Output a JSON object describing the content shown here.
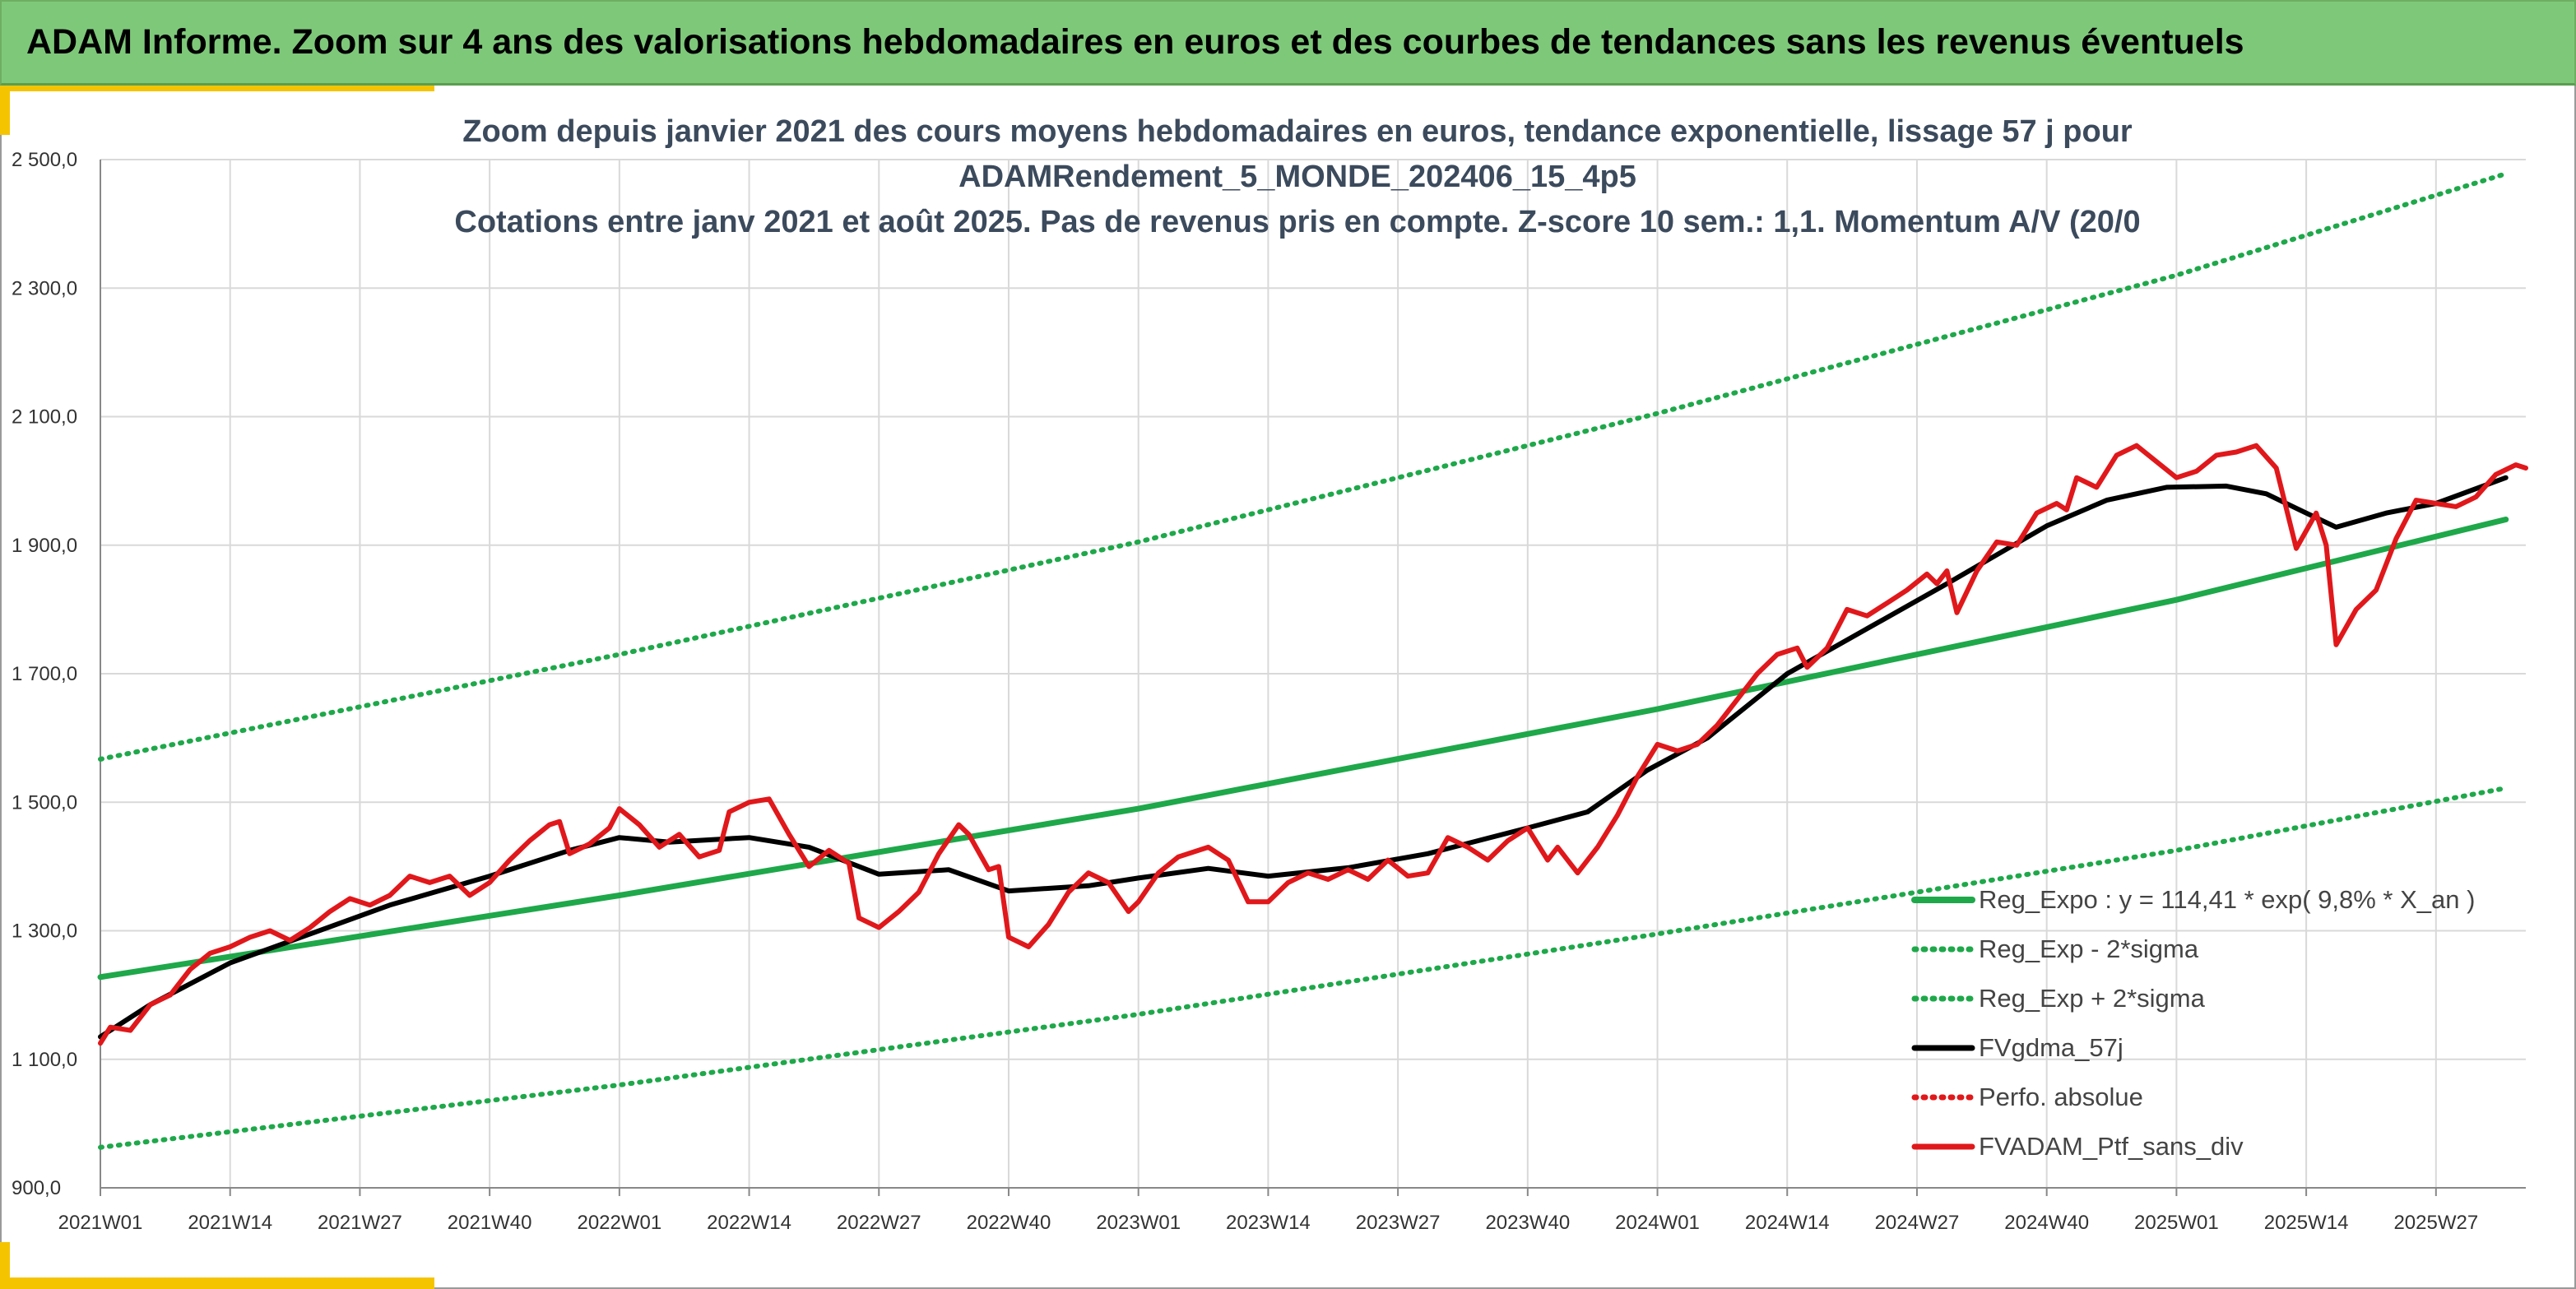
{
  "header": {
    "title": "ADAM Informe. Zoom sur 4 ans des valorisations hebdomadaires en euros et des courbes de tendances sans les revenus éventuels",
    "background": "#7ec87a"
  },
  "colors": {
    "accent": "#f5c400",
    "trend": "#1ea84a",
    "sigma": "#1ea84a",
    "smoothed": "#000000",
    "perf_abs": "#e0181b",
    "portfolio": "#e0181b",
    "grid": "#d9d9d9"
  },
  "chart_data": {
    "type": "line",
    "title_lines": [
      "Zoom depuis janvier 2021 des cours moyens hebdomadaires en euros, tendance exponentielle, lissage 57 j pour",
      "ADAMRendement_5_MONDE_202406_15_4p5",
      "Cotations entre janv 2021 et août 2025. Pas de revenus pris en compte. Z-score 10 sem.: 1,1. Momentum A/V (20/0"
    ],
    "ylim": [
      900,
      2500
    ],
    "y_ticks": [
      900,
      1100,
      1300,
      1500,
      1700,
      1900,
      2100,
      2300,
      2500
    ],
    "y_tick_labels": [
      "900,0",
      "1 100,0",
      "1 300,0",
      "1 500,0",
      "1 700,0",
      "1 900,0",
      "2 100,0",
      "2 300,0",
      "2 500,0"
    ],
    "x_tick_labels": [
      "2021W01",
      "2021W14",
      "2021W27",
      "2021W40",
      "2022W01",
      "2022W14",
      "2022W27",
      "2022W40",
      "2023W01",
      "2023W14",
      "2023W27",
      "2023W40",
      "2024W01",
      "2024W14",
      "2024W27",
      "2024W40",
      "2025W01",
      "2025W14",
      "2025W27"
    ],
    "legend_position": "bottom-right",
    "grid": true,
    "series": [
      {
        "name": "Reg_Expo : y = 114,41 * exp( 9,8% *  X_an )",
        "style": "solid",
        "points": [
          [
            "2021W01",
            1228
          ],
          [
            "2022W01",
            1355
          ],
          [
            "2023W01",
            1490
          ],
          [
            "2024W01",
            1645
          ],
          [
            "2025W01",
            1815
          ],
          [
            "2025W34",
            1940
          ]
        ]
      },
      {
        "name": "Reg_Exp - 2*sigma",
        "style": "dotted",
        "points": [
          [
            "2021W01",
            963
          ],
          [
            "2022W01",
            1060
          ],
          [
            "2023W01",
            1170
          ],
          [
            "2024W01",
            1295
          ],
          [
            "2025W01",
            1425
          ],
          [
            "2025W34",
            1522
          ]
        ]
      },
      {
        "name": "Reg_Exp + 2*sigma",
        "style": "dotted",
        "points": [
          [
            "2021W01",
            1567
          ],
          [
            "2022W01",
            1730
          ],
          [
            "2023W01",
            1905
          ],
          [
            "2024W01",
            2105
          ],
          [
            "2025W01",
            2320
          ],
          [
            "2025W34",
            2478
          ]
        ]
      },
      {
        "name": "FVgdma_57j",
        "style": "solid",
        "points": [
          [
            "2021W01",
            1135
          ],
          [
            "2021W06",
            1185
          ],
          [
            "2021W14",
            1250
          ],
          [
            "2021W22",
            1295
          ],
          [
            "2021W30",
            1340
          ],
          [
            "2021W40",
            1385
          ],
          [
            "2021W48",
            1425
          ],
          [
            "2022W01",
            1445
          ],
          [
            "2022W06",
            1438
          ],
          [
            "2022W14",
            1445
          ],
          [
            "2022W20",
            1430
          ],
          [
            "2022W27",
            1388
          ],
          [
            "2022W34",
            1395
          ],
          [
            "2022W40",
            1362
          ],
          [
            "2022W48",
            1370
          ],
          [
            "2023W01",
            1382
          ],
          [
            "2023W08",
            1397
          ],
          [
            "2023W14",
            1385
          ],
          [
            "2023W22",
            1398
          ],
          [
            "2023W30",
            1420
          ],
          [
            "2023W40",
            1460
          ],
          [
            "2023W46",
            1485
          ],
          [
            "2023W52",
            1550
          ],
          [
            "2024W06",
            1600
          ],
          [
            "2024W14",
            1700
          ],
          [
            "2024W22",
            1770
          ],
          [
            "2024W30",
            1840
          ],
          [
            "2024W40",
            1930
          ],
          [
            "2024W46",
            1970
          ],
          [
            "2024W52",
            1990
          ],
          [
            "2025W06",
            1992
          ],
          [
            "2025W10",
            1980
          ],
          [
            "2025W14",
            1950
          ],
          [
            "2025W17",
            1928
          ],
          [
            "2025W22",
            1950
          ],
          [
            "2025W27",
            1965
          ],
          [
            "2025W34",
            2005
          ]
        ]
      },
      {
        "name": "Perfo. absolue",
        "style": "dotted",
        "points": []
      },
      {
        "name": "FVADAM_Ptf_sans_div",
        "style": "solid",
        "points": [
          [
            "2021W01",
            1125
          ],
          [
            "2021W02",
            1150
          ],
          [
            "2021W04",
            1145
          ],
          [
            "2021W06",
            1185
          ],
          [
            "2021W08",
            1200
          ],
          [
            "2021W10",
            1240
          ],
          [
            "2021W12",
            1265
          ],
          [
            "2021W14",
            1275
          ],
          [
            "2021W16",
            1290
          ],
          [
            "2021W18",
            1300
          ],
          [
            "2021W20",
            1285
          ],
          [
            "2021W22",
            1305
          ],
          [
            "2021W24",
            1330
          ],
          [
            "2021W26",
            1350
          ],
          [
            "2021W28",
            1340
          ],
          [
            "2021W30",
            1355
          ],
          [
            "2021W32",
            1385
          ],
          [
            "2021W34",
            1375
          ],
          [
            "2021W36",
            1385
          ],
          [
            "2021W38",
            1355
          ],
          [
            "2021W40",
            1375
          ],
          [
            "2021W42",
            1410
          ],
          [
            "2021W44",
            1440
          ],
          [
            "2021W46",
            1465
          ],
          [
            "2021W47",
            1470
          ],
          [
            "2021W48",
            1420
          ],
          [
            "2021W50",
            1435
          ],
          [
            "2021W52",
            1460
          ],
          [
            "2022W01",
            1490
          ],
          [
            "2022W03",
            1465
          ],
          [
            "2022W05",
            1430
          ],
          [
            "2022W07",
            1450
          ],
          [
            "2022W09",
            1415
          ],
          [
            "2022W11",
            1425
          ],
          [
            "2022W12",
            1485
          ],
          [
            "2022W14",
            1500
          ],
          [
            "2022W16",
            1505
          ],
          [
            "2022W18",
            1450
          ],
          [
            "2022W20",
            1400
          ],
          [
            "2022W22",
            1425
          ],
          [
            "2022W24",
            1405
          ],
          [
            "2022W25",
            1320
          ],
          [
            "2022W27",
            1305
          ],
          [
            "2022W29",
            1330
          ],
          [
            "2022W31",
            1360
          ],
          [
            "2022W33",
            1420
          ],
          [
            "2022W35",
            1465
          ],
          [
            "2022W36",
            1450
          ],
          [
            "2022W38",
            1395
          ],
          [
            "2022W39",
            1400
          ],
          [
            "2022W40",
            1290
          ],
          [
            "2022W42",
            1275
          ],
          [
            "2022W44",
            1310
          ],
          [
            "2022W46",
            1360
          ],
          [
            "2022W48",
            1390
          ],
          [
            "2022W50",
            1375
          ],
          [
            "2022W52",
            1330
          ],
          [
            "2023W01",
            1345
          ],
          [
            "2023W03",
            1390
          ],
          [
            "2023W05",
            1415
          ],
          [
            "2023W08",
            1430
          ],
          [
            "2023W10",
            1410
          ],
          [
            "2023W12",
            1345
          ],
          [
            "2023W14",
            1345
          ],
          [
            "2023W16",
            1375
          ],
          [
            "2023W18",
            1390
          ],
          [
            "2023W20",
            1380
          ],
          [
            "2023W22",
            1395
          ],
          [
            "2023W24",
            1380
          ],
          [
            "2023W26",
            1410
          ],
          [
            "2023W28",
            1385
          ],
          [
            "2023W30",
            1390
          ],
          [
            "2023W32",
            1445
          ],
          [
            "2023W34",
            1430
          ],
          [
            "2023W36",
            1410
          ],
          [
            "2023W38",
            1440
          ],
          [
            "2023W40",
            1460
          ],
          [
            "2023W42",
            1410
          ],
          [
            "2023W43",
            1430
          ],
          [
            "2023W45",
            1390
          ],
          [
            "2023W47",
            1430
          ],
          [
            "2023W49",
            1480
          ],
          [
            "2023W51",
            1540
          ],
          [
            "2024W01",
            1590
          ],
          [
            "2024W03",
            1580
          ],
          [
            "2024W05",
            1590
          ],
          [
            "2024W07",
            1620
          ],
          [
            "2024W09",
            1660
          ],
          [
            "2024W11",
            1700
          ],
          [
            "2024W13",
            1730
          ],
          [
            "2024W15",
            1740
          ],
          [
            "2024W16",
            1710
          ],
          [
            "2024W18",
            1740
          ],
          [
            "2024W20",
            1800
          ],
          [
            "2024W22",
            1790
          ],
          [
            "2024W24",
            1810
          ],
          [
            "2024W26",
            1830
          ],
          [
            "2024W28",
            1855
          ],
          [
            "2024W29",
            1840
          ],
          [
            "2024W30",
            1860
          ],
          [
            "2024W31",
            1795
          ],
          [
            "2024W33",
            1860
          ],
          [
            "2024W35",
            1905
          ],
          [
            "2024W37",
            1900
          ],
          [
            "2024W39",
            1950
          ],
          [
            "2024W41",
            1965
          ],
          [
            "2024W42",
            1955
          ],
          [
            "2024W43",
            2005
          ],
          [
            "2024W45",
            1990
          ],
          [
            "2024W47",
            2040
          ],
          [
            "2024W49",
            2055
          ],
          [
            "2024W51",
            2030
          ],
          [
            "2025W01",
            2005
          ],
          [
            "2025W03",
            2015
          ],
          [
            "2025W05",
            2040
          ],
          [
            "2025W07",
            2045
          ],
          [
            "2025W09",
            2055
          ],
          [
            "2025W11",
            2020
          ],
          [
            "2025W13",
            1895
          ],
          [
            "2025W15",
            1950
          ],
          [
            "2025W16",
            1900
          ],
          [
            "2025W17",
            1745
          ],
          [
            "2025W19",
            1800
          ],
          [
            "2025W21",
            1830
          ],
          [
            "2025W23",
            1910
          ],
          [
            "2025W25",
            1970
          ],
          [
            "2025W27",
            1965
          ],
          [
            "2025W29",
            1960
          ],
          [
            "2025W31",
            1975
          ],
          [
            "2025W33",
            2010
          ],
          [
            "2025W35",
            2025
          ],
          [
            "2025W36",
            2020
          ]
        ]
      }
    ]
  }
}
